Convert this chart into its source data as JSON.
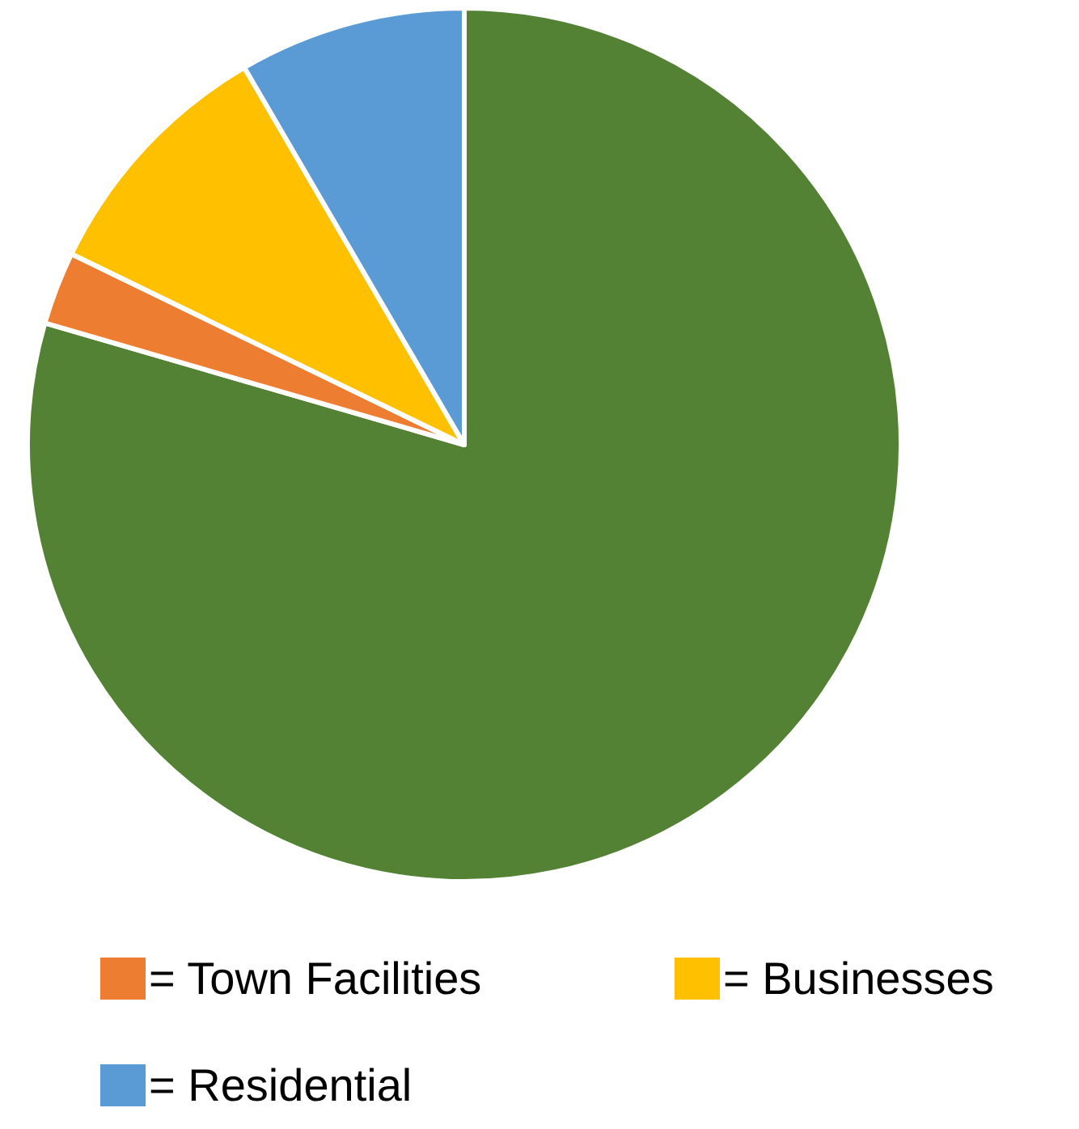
{
  "chart_data": {
    "type": "pie",
    "categories": [
      null,
      "= Town Facilities",
      "= Businesses",
      "= Residential"
    ],
    "values": [
      79.5,
      2.7,
      9.4,
      8.4
    ],
    "colors": [
      "#548235",
      "#ed7d31",
      "#ffc000",
      "#5b9bd5"
    ],
    "legend": "bottom"
  }
}
